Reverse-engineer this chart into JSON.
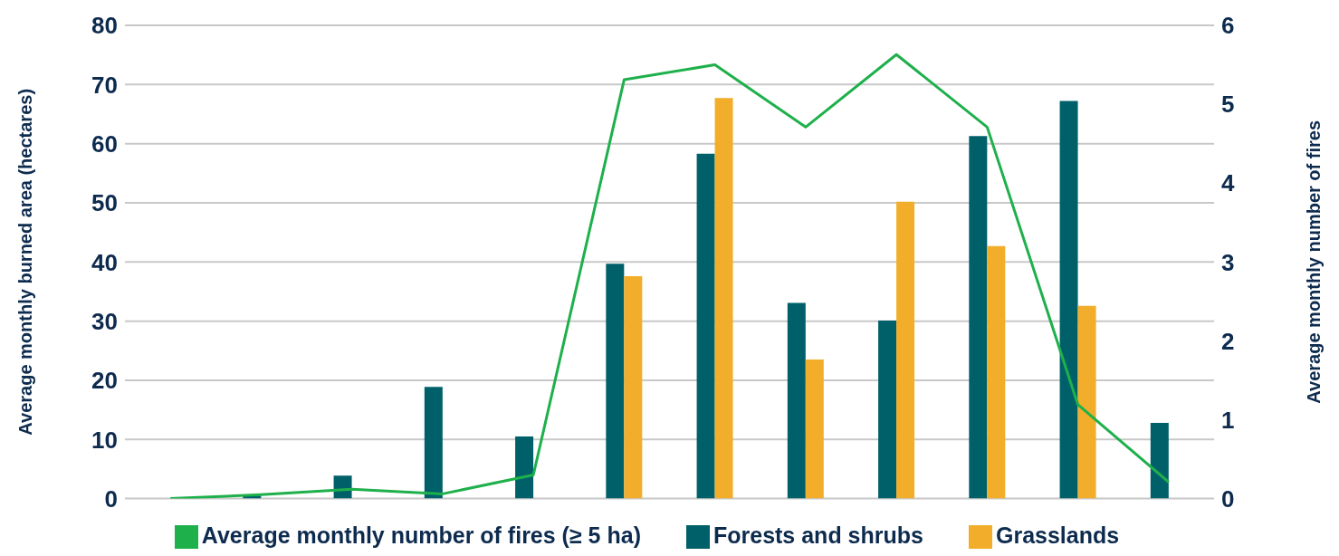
{
  "chart_data": {
    "type": "bar",
    "ylabel": "Average monthly burned area (hectares)",
    "y2label": "Average monthly number of fires",
    "categories": [
      null,
      null,
      null,
      null,
      null,
      null,
      null,
      null,
      null,
      null,
      null,
      null
    ],
    "series": [
      {
        "name": "Forests and shrubs",
        "color": "#00606a",
        "values": [
          0,
          0.5,
          3.9,
          18.9,
          10.5,
          39.7,
          58.3,
          33.1,
          30.1,
          61.3,
          67.2,
          12.8
        ]
      },
      {
        "name": "Grasslands",
        "color": "#f2ae2a",
        "values": [
          0,
          0,
          0,
          0,
          0,
          37.6,
          67.7,
          23.5,
          50.2,
          42.7,
          32.6,
          0
        ]
      },
      {
        "name": "Average monthly number of fires (≥ 5 ha)",
        "type": "line",
        "axis": "y2",
        "color": "#1eb04b",
        "values": [
          0,
          0.05,
          0.12,
          0.06,
          0.3,
          5.31,
          5.5,
          4.71,
          5.63,
          4.71,
          1.19,
          0.21
        ]
      }
    ],
    "ylim": [
      0,
      80
    ],
    "yticks": [
      0,
      10,
      20,
      30,
      40,
      50,
      60,
      70,
      80
    ],
    "y2lim": [
      0,
      6
    ],
    "y2ticks": [
      0,
      1,
      2,
      3,
      4,
      5,
      6
    ],
    "grid": "y",
    "legend": "bottom",
    "marker": "none"
  }
}
